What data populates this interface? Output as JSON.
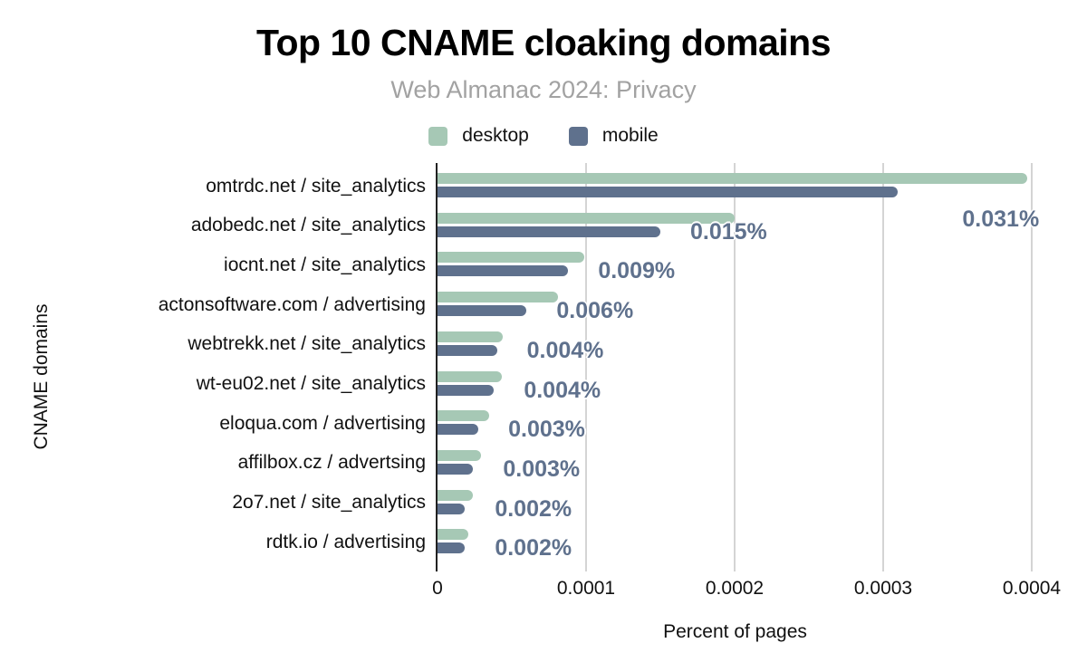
{
  "title": "Top 10 CNAME cloaking domains",
  "subtitle": "Web Almanac 2024: Privacy",
  "chart_data": {
    "type": "bar",
    "orientation": "horizontal",
    "title": "Top 10 CNAME cloaking domains",
    "subtitle": "Web Almanac 2024: Privacy",
    "xlabel": "Percent of pages",
    "ylabel": "CNAME domains",
    "xlim": [
      0,
      0.0004
    ],
    "xticks": [
      "0",
      "0.0001",
      "0.0002",
      "0.0003",
      "0.0004"
    ],
    "grid": true,
    "legend_position": "top",
    "categories": [
      "omtrdc.net / site_analytics",
      "adobedc.net / site_analytics",
      "iocnt.net / site_analytics",
      "actonsoftware.com / advertising",
      "webtrekk.net / site_analytics",
      "wt-eu02.net / site_analytics",
      "eloqua.com / advertising",
      "affilbox.cz / advertsing",
      "2o7.net / site_analytics",
      "rdtk.io / advertising"
    ],
    "series": [
      {
        "name": "desktop",
        "color": "#a6c8b5",
        "values": [
          0.000397,
          0.0002,
          9.9e-05,
          8.1e-05,
          4.4e-05,
          4.3e-05,
          3.5e-05,
          2.9e-05,
          2.4e-05,
          2.1e-05
        ]
      },
      {
        "name": "mobile",
        "color": "#5f718d",
        "values": [
          0.00031,
          0.00015,
          8.8e-05,
          6e-05,
          4e-05,
          3.8e-05,
          2.75e-05,
          2.4e-05,
          1.85e-05,
          1.85e-05
        ]
      }
    ],
    "annotations": [
      "0.031%",
      "0.015%",
      "0.009%",
      "0.006%",
      "0.004%",
      "0.004%",
      "0.003%",
      "0.003%",
      "0.002%",
      "0.002%"
    ],
    "annotation_series": "mobile",
    "annotation_color": "#5f718d"
  },
  "colors": {
    "background": "#ffffff",
    "desktop": "#a6c8b5",
    "mobile": "#5f718d",
    "subtitle_text": "#a2a2a2",
    "gridline": "#d4d4d4",
    "axis_line": "#212121",
    "annotation_text": "#5f718d"
  }
}
